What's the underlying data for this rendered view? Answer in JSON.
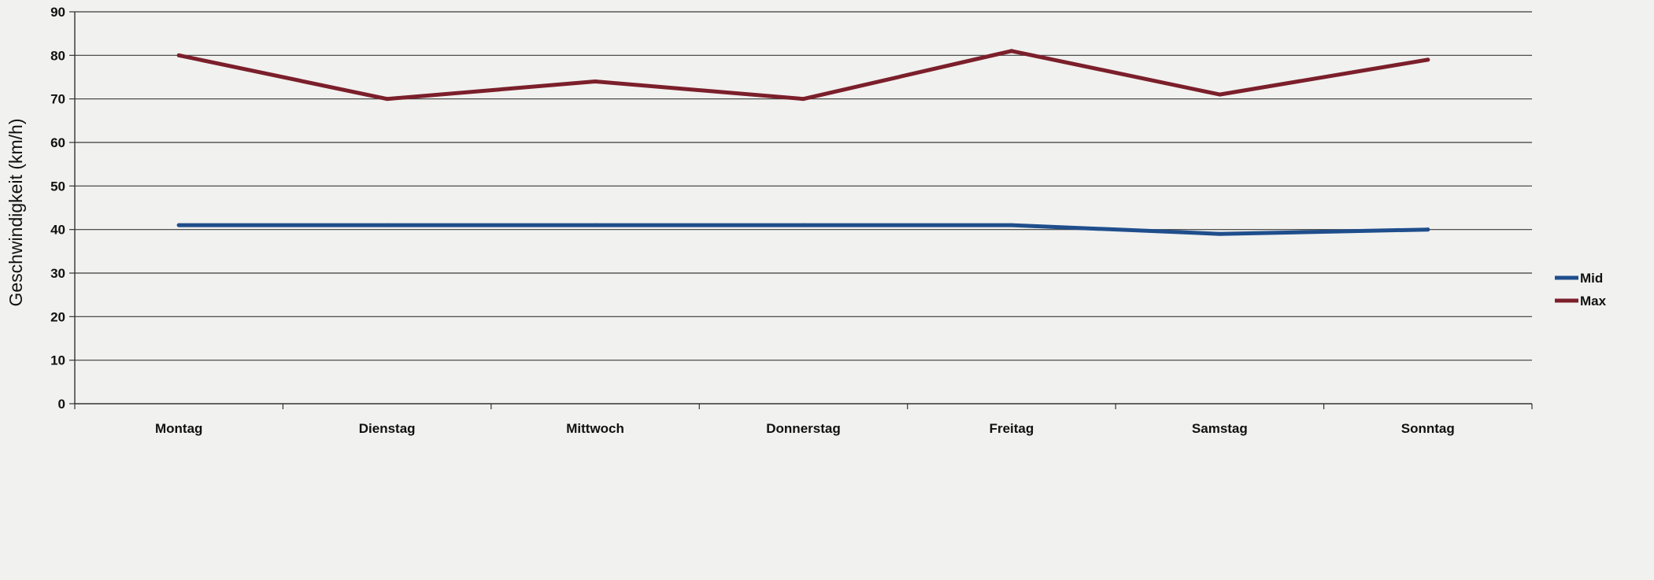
{
  "chart_data": {
    "type": "line",
    "categories": [
      "Montag",
      "Dienstag",
      "Mittwoch",
      "Donnerstag",
      "Freitag",
      "Samstag",
      "Sonntag"
    ],
    "series": [
      {
        "name": "Mid",
        "color": "#1f4e8c",
        "values": [
          41,
          41,
          41,
          41,
          41,
          39,
          40
        ]
      },
      {
        "name": "Max",
        "color": "#7b1f2b",
        "values": [
          80,
          70,
          74,
          70,
          81,
          71,
          79
        ]
      }
    ],
    "ylabel": "Geschwindigkeit (km/h)",
    "ylim": [
      0,
      90
    ],
    "yticks": [
      0,
      10,
      20,
      30,
      40,
      50,
      60,
      70,
      80,
      90
    ],
    "grid": true,
    "legend": "right"
  }
}
